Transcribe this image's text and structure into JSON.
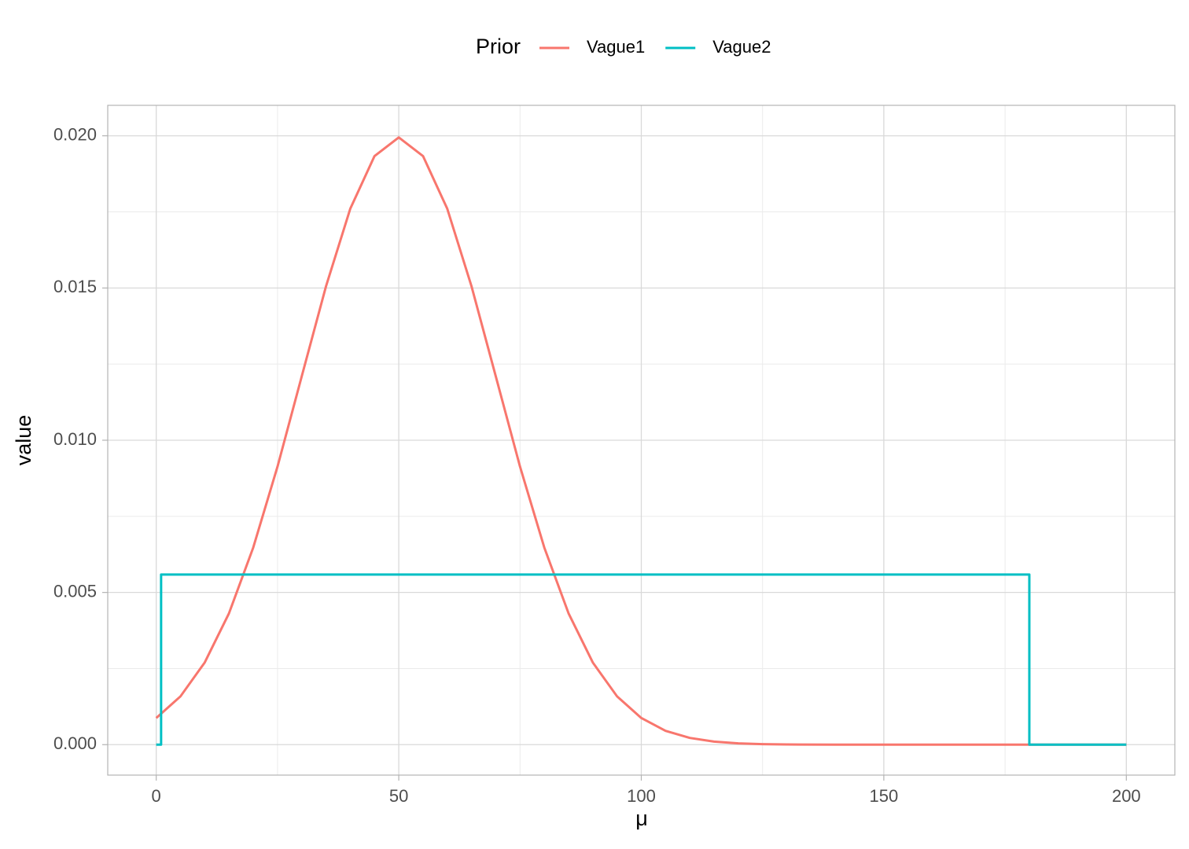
{
  "chart_data": {
    "type": "line",
    "legend_title": "Prior",
    "legend_position": "top",
    "xlabel": "μ",
    "ylabel": "value",
    "xlim": [
      -10,
      210
    ],
    "ylim": [
      -0.001,
      0.021
    ],
    "xticks": [
      0,
      50,
      100,
      150,
      200
    ],
    "x_minor_ticks": [
      25,
      75,
      125,
      175
    ],
    "yticks": [
      {
        "value": 0,
        "label": "0.000"
      },
      {
        "value": 0.005,
        "label": "0.005"
      },
      {
        "value": 0.01,
        "label": "0.010"
      },
      {
        "value": 0.015,
        "label": "0.015"
      },
      {
        "value": 0.02,
        "label": "0.020"
      }
    ],
    "y_minor_ticks": [
      0.0025,
      0.0075,
      0.0125,
      0.0175
    ],
    "grid": true,
    "series": [
      {
        "name": "Vague1",
        "color": "#f8766d",
        "x": [
          0,
          5,
          10,
          15,
          20,
          25,
          30,
          35,
          40,
          45,
          50,
          55,
          60,
          65,
          70,
          75,
          80,
          85,
          90,
          95,
          100,
          105,
          110,
          115,
          120,
          125,
          130,
          140,
          150,
          160,
          170,
          180,
          190,
          200
        ],
        "values": [
          0.000876,
          0.001587,
          0.0027,
          0.004315,
          0.006476,
          0.009132,
          0.0121,
          0.015056,
          0.017603,
          0.019333,
          0.019947,
          0.019333,
          0.017603,
          0.015056,
          0.0121,
          0.009132,
          0.006476,
          0.004315,
          0.0027,
          0.001587,
          0.000876,
          0.000455,
          0.000222,
          0.000101,
          4.36e-05,
          1.76e-05,
          6.7e-06,
          0,
          0,
          0,
          0,
          0,
          0,
          0
        ]
      },
      {
        "name": "Vague2",
        "color": "#00bfc4",
        "x": [
          0,
          1,
          1,
          180,
          180,
          200
        ],
        "values": [
          0,
          0,
          0.005587,
          0.005587,
          0,
          0
        ]
      }
    ]
  }
}
